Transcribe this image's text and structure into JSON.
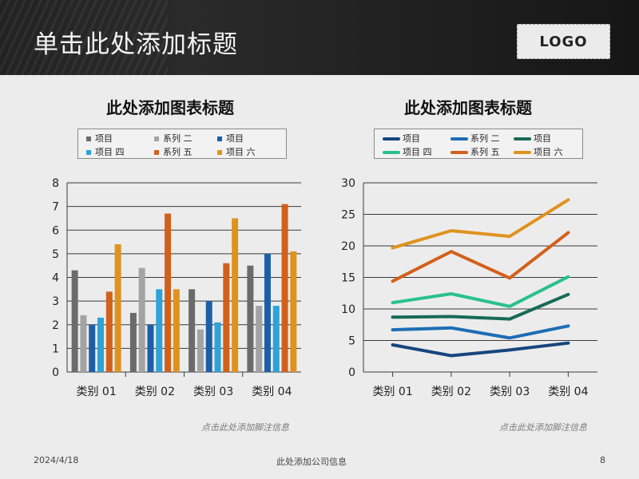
{
  "header": {
    "title": "单击此处添加标题",
    "logo": "LOGO"
  },
  "footer": {
    "date": "2024/4/18",
    "company": "此处添加公司信息",
    "page": "8"
  },
  "chart_data": [
    {
      "type": "bar",
      "title": "此处添加图表标题",
      "footnote": "点击此处添加脚注信息",
      "categories": [
        "类别 01",
        "类别 02",
        "类别 03",
        "类别 04"
      ],
      "ylim": [
        0,
        8
      ],
      "yticks": [
        0,
        1,
        2,
        3,
        4,
        5,
        6,
        7,
        8
      ],
      "grid": true,
      "legend_position": "top",
      "series": [
        {
          "name": "项目",
          "color": "#6b6b6b",
          "values": [
            4.3,
            2.5,
            3.5,
            4.5
          ]
        },
        {
          "name": "系列 二",
          "color": "#a3a3a3",
          "values": [
            2.4,
            4.4,
            1.8,
            2.8
          ]
        },
        {
          "name": "项目",
          "color": "#1c5fa8",
          "values": [
            2.0,
            2.0,
            3.0,
            5.0
          ]
        },
        {
          "name": "项目 四",
          "color": "#2ea3d8",
          "values": [
            2.3,
            3.5,
            2.1,
            2.8
          ]
        },
        {
          "name": "系列 五",
          "color": "#d2601b",
          "values": [
            3.4,
            6.7,
            4.6,
            7.1
          ]
        },
        {
          "name": "项目 六",
          "color": "#df931f",
          "values": [
            5.4,
            3.5,
            6.5,
            5.1
          ]
        }
      ]
    },
    {
      "type": "line",
      "title": "此处添加图表标题",
      "footnote": "点击此处添加脚注信息",
      "categories": [
        "类别 01",
        "类别 02",
        "类别 03",
        "类别 04"
      ],
      "ylim": [
        0,
        30
      ],
      "yticks": [
        0,
        5,
        10,
        15,
        20,
        25,
        30
      ],
      "grid": true,
      "legend_position": "top",
      "series": [
        {
          "name": "项目",
          "color": "#17467e",
          "values": [
            4.3,
            2.6,
            3.5,
            4.6
          ]
        },
        {
          "name": "系列 二",
          "color": "#1d6db4",
          "values": [
            6.7,
            7.0,
            5.4,
            7.3
          ]
        },
        {
          "name": "项目",
          "color": "#176a58",
          "values": [
            8.7,
            8.8,
            8.4,
            12.3
          ]
        },
        {
          "name": "项目 四",
          "color": "#2ac08d",
          "values": [
            11.0,
            12.4,
            10.4,
            15.1
          ]
        },
        {
          "name": "系列 五",
          "color": "#d2601b",
          "values": [
            14.4,
            19.1,
            14.9,
            22.1
          ]
        },
        {
          "name": "项目 六",
          "color": "#df931f",
          "values": [
            19.7,
            22.4,
            21.5,
            27.3
          ]
        }
      ]
    }
  ]
}
